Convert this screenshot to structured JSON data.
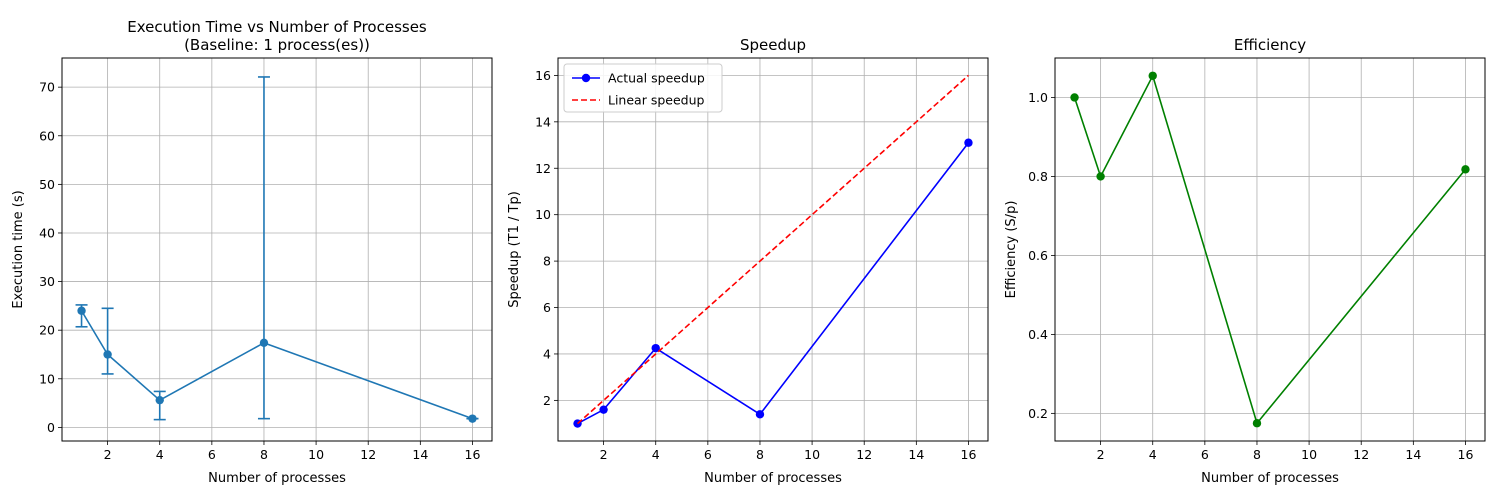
{
  "chart_data": [
    {
      "type": "line",
      "title_lines": [
        "Execution Time vs Number of Processes",
        "(Baseline: 1 process(es))"
      ],
      "xlabel": "Number of processes",
      "ylabel": "Execution time (s)",
      "xlim": [
        0.25,
        16.75
      ],
      "ylim": [
        -2.8,
        76.0
      ],
      "xticks": [
        2,
        4,
        6,
        8,
        10,
        12,
        14,
        16
      ],
      "yticks": [
        0,
        10,
        20,
        30,
        40,
        50,
        60,
        70
      ],
      "grid": true,
      "series": [
        {
          "x": [
            1,
            2,
            4,
            8,
            16
          ],
          "y": [
            24.0,
            15.0,
            5.6,
            17.4,
            1.8
          ],
          "err_low": [
            20.7,
            11.0,
            1.6,
            1.8,
            1.8
          ],
          "err_high": [
            25.2,
            24.5,
            7.4,
            72.1,
            1.8
          ],
          "color": "#1f77b4",
          "marker": "circle"
        }
      ]
    },
    {
      "type": "line",
      "title_lines": [
        "Speedup"
      ],
      "xlabel": "Number of processes",
      "ylabel": "Speedup (T1 / Tp)",
      "xlim": [
        0.25,
        16.75
      ],
      "ylim": [
        0.25,
        16.75
      ],
      "xticks": [
        2,
        4,
        6,
        8,
        10,
        12,
        14,
        16
      ],
      "yticks": [
        2,
        4,
        6,
        8,
        10,
        12,
        14,
        16
      ],
      "grid": true,
      "legend_position": "top-left",
      "series": [
        {
          "name": "Actual speedup",
          "x": [
            1,
            2,
            4,
            8,
            16
          ],
          "y": [
            1.0,
            1.6,
            4.25,
            1.4,
            13.1
          ],
          "color": "#0000ff",
          "marker": "circle",
          "style": "solid"
        },
        {
          "name": "Linear speedup",
          "x": [
            1,
            16
          ],
          "y": [
            1,
            16
          ],
          "color": "#ff0000",
          "style": "dashed"
        }
      ]
    },
    {
      "type": "line",
      "title_lines": [
        "Efficiency"
      ],
      "xlabel": "Number of processes",
      "ylabel": "Efficiency (S/p)",
      "xlim": [
        0.25,
        16.75
      ],
      "ylim": [
        0.13,
        1.1
      ],
      "xticks": [
        2,
        4,
        6,
        8,
        10,
        12,
        14,
        16
      ],
      "yticks": [
        0.2,
        0.4,
        0.6,
        0.8,
        1.0
      ],
      "ytick_labels": [
        "0.2",
        "0.4",
        "0.6",
        "0.8",
        "1.0"
      ],
      "grid": true,
      "series": [
        {
          "x": [
            1,
            2,
            4,
            8,
            16
          ],
          "y": [
            1.0,
            0.8,
            1.055,
            0.175,
            0.818
          ],
          "color": "#008000",
          "marker": "circle"
        }
      ]
    }
  ]
}
